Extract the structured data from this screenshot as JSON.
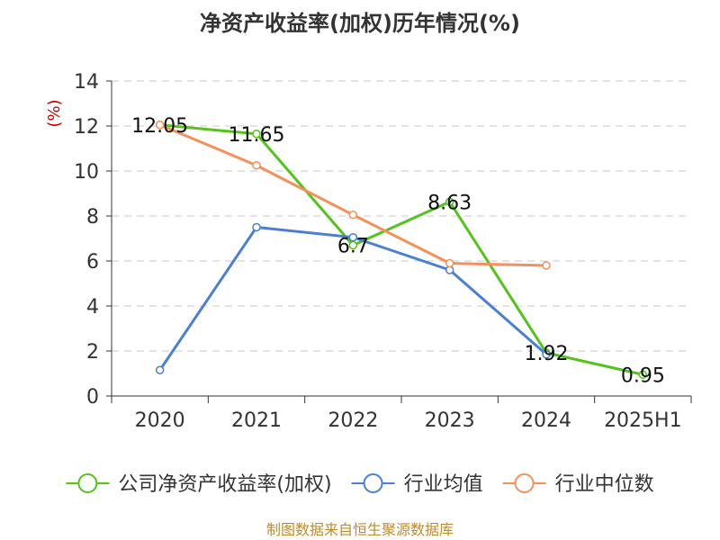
{
  "chart_data": {
    "type": "line",
    "title": "净资产收益率(加权)历年情况(%)",
    "ylabel": "(%)",
    "categories": [
      "2020",
      "2021",
      "2022",
      "2023",
      "2024",
      "2025H1"
    ],
    "ylim": [
      0,
      14
    ],
    "yticks": [
      0,
      2,
      4,
      6,
      8,
      10,
      12,
      14
    ],
    "grid": true,
    "legend_position": "bottom",
    "series": [
      {
        "name": "公司净资产收益率(加权)",
        "color": "#52c41a",
        "values": [
          12.05,
          11.65,
          6.7,
          8.63,
          1.92,
          0.95
        ],
        "labels": [
          "12.05",
          "11.65",
          "6.7",
          "8.63",
          "1.92",
          "0.95"
        ]
      },
      {
        "name": "行业均值",
        "color": "#4a7fd6",
        "values": [
          1.15,
          7.5,
          7.05,
          5.6,
          1.85,
          null
        ]
      },
      {
        "name": "行业中位数",
        "color": "#f5905a",
        "values": [
          12.05,
          10.25,
          8.05,
          5.9,
          5.8,
          null
        ]
      }
    ]
  },
  "footer": {
    "source": "制图数据来自恒生聚源数据库"
  }
}
